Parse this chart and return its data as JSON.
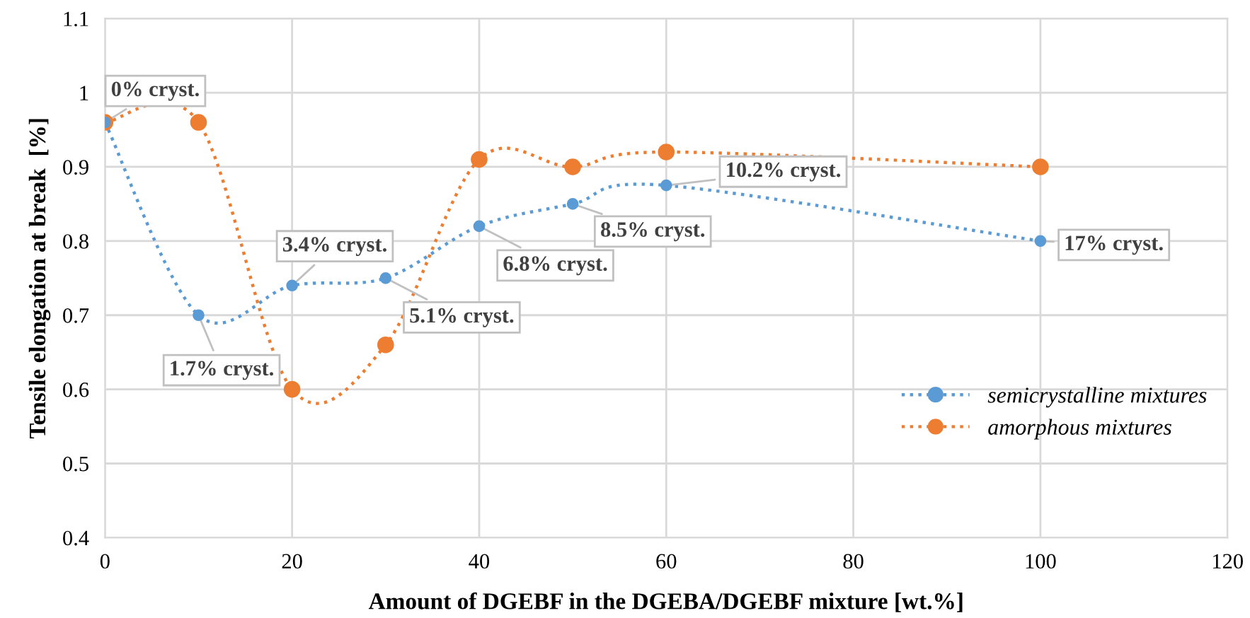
{
  "chart_data": {
    "type": "line",
    "xlabel": "Amount of DGEBF in the DGEBA/DGEBF mixture [wt.%]",
    "ylabel": "Tensile elongation at break  [%]",
    "xlim": [
      0,
      120
    ],
    "xticks": [
      0,
      20,
      40,
      60,
      80,
      100,
      120
    ],
    "ylim": [
      0.4,
      1.1
    ],
    "yticks": [
      0.4,
      0.5,
      0.6,
      0.7,
      0.8,
      0.9,
      1,
      1.1
    ],
    "grid": true,
    "legend": "right",
    "marker": "circle",
    "line_style": "dotted",
    "series": [
      {
        "name": "semicrystalline mixtures",
        "color": "#5b9bd5",
        "x": [
          0,
          10,
          20,
          30,
          40,
          50,
          60,
          100
        ],
        "values": [
          0.96,
          0.7,
          0.74,
          0.75,
          0.82,
          0.85,
          0.875,
          0.8
        ]
      },
      {
        "name": "amorphous mixtures",
        "color": "#ed7d31",
        "x": [
          0,
          10,
          20,
          30,
          40,
          50,
          60,
          100
        ],
        "values": [
          0.96,
          0.96,
          0.6,
          0.66,
          0.91,
          0.9,
          0.92,
          0.9
        ]
      }
    ],
    "annotations": [
      {
        "text": "0% cryst.",
        "x": 0,
        "y": 0.96
      },
      {
        "text": "1.7% cryst.",
        "x": 10,
        "y": 0.7
      },
      {
        "text": "3.4% cryst.",
        "x": 20,
        "y": 0.74
      },
      {
        "text": "5.1% cryst.",
        "x": 30,
        "y": 0.75
      },
      {
        "text": "6.8% cryst.",
        "x": 40,
        "y": 0.82
      },
      {
        "text": "8.5% cryst.",
        "x": 50,
        "y": 0.85
      },
      {
        "text": "10.2% cryst.",
        "x": 60,
        "y": 0.875
      },
      {
        "text": "17% cryst.",
        "x": 100,
        "y": 0.8
      }
    ]
  }
}
